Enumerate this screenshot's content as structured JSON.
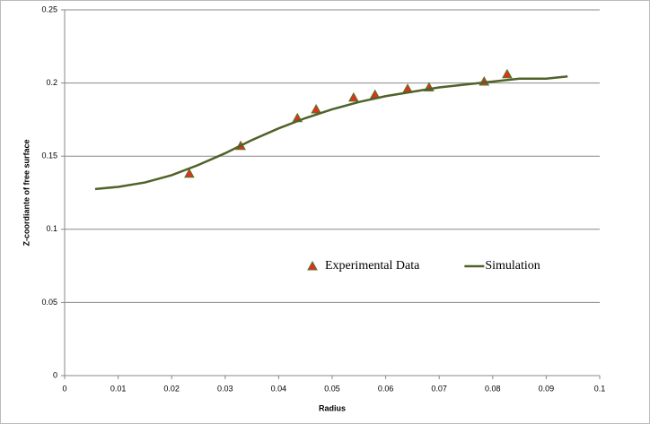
{
  "chart_data": {
    "type": "scatter",
    "xlabel": "Radius",
    "ylabel": "Z-coordiante of free surface",
    "xlim": [
      0,
      0.1
    ],
    "xticks": [
      0,
      0.01,
      0.02,
      0.03,
      0.04,
      0.05,
      0.06,
      0.07,
      0.08,
      0.09,
      0.1
    ],
    "ylim": [
      0,
      0.25
    ],
    "yticks": [
      0,
      0.05,
      0.1,
      0.15,
      0.2,
      0.25
    ],
    "grid": true,
    "legend": "center",
    "series": [
      {
        "name": "Experimental Data",
        "style": "markers",
        "color": "#e0301e",
        "edge_color": "#4f7a28",
        "x": [
          0.0233,
          0.0329,
          0.0435,
          0.047,
          0.054,
          0.058,
          0.0641,
          0.0681,
          0.0784,
          0.0827
        ],
        "values": [
          0.138,
          0.157,
          0.176,
          0.182,
          0.19,
          0.192,
          0.196,
          0.197,
          0.201,
          0.206
        ]
      },
      {
        "name": "Simulation",
        "style": "line",
        "color": "#4f6228",
        "x": [
          0.0057,
          0.01,
          0.015,
          0.02,
          0.025,
          0.03,
          0.035,
          0.04,
          0.045,
          0.05,
          0.055,
          0.06,
          0.065,
          0.07,
          0.075,
          0.08,
          0.085,
          0.09,
          0.094
        ],
        "values": [
          0.1275,
          0.129,
          0.132,
          0.137,
          0.144,
          0.152,
          0.161,
          0.169,
          0.176,
          0.182,
          0.187,
          0.191,
          0.194,
          0.197,
          0.199,
          0.201,
          0.203,
          0.203,
          0.2045
        ]
      }
    ]
  }
}
